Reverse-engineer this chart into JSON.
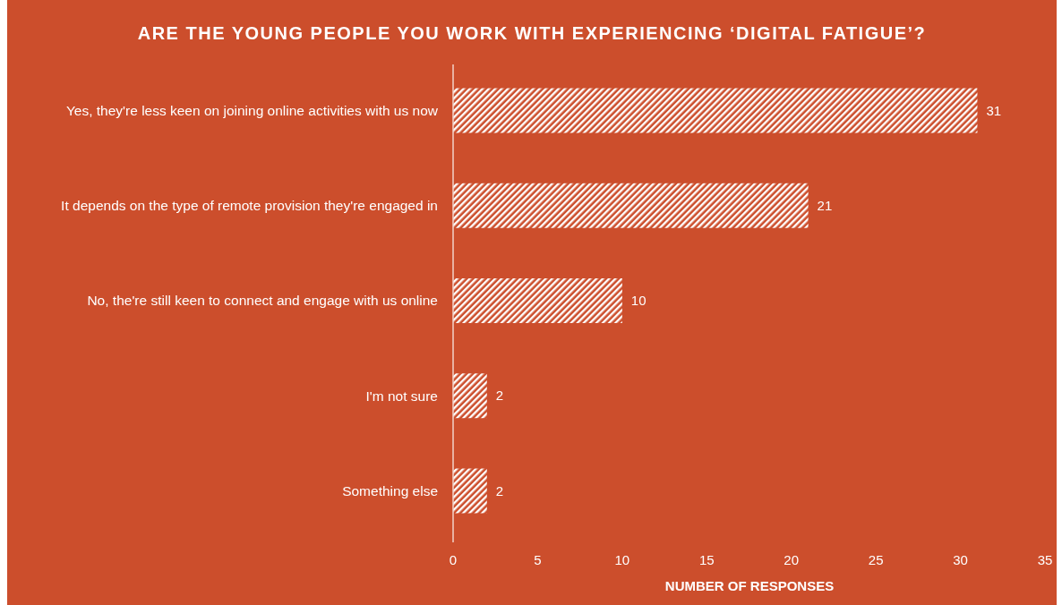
{
  "chart_data": {
    "type": "bar",
    "orientation": "horizontal",
    "title": "ARE THE YOUNG PEOPLE YOU WORK WITH EXPERIENCING ‘DIGITAL FATIGUE’?",
    "xlabel": "NUMBER OF RESPONSES",
    "categories": [
      "Yes, they're less keen on joining online activities with us now",
      "It depends on the type of remote provision they're engaged in",
      "No, the're still keen to connect and engage with us online",
      "I'm not sure",
      "Something else"
    ],
    "values": [
      31,
      21,
      10,
      2,
      2
    ],
    "color": "#ffffff",
    "xlim": [
      0,
      35
    ],
    "xticks": [
      0,
      5,
      10,
      15,
      20,
      25,
      30,
      35
    ],
    "data_labels": true,
    "grid": false
  }
}
